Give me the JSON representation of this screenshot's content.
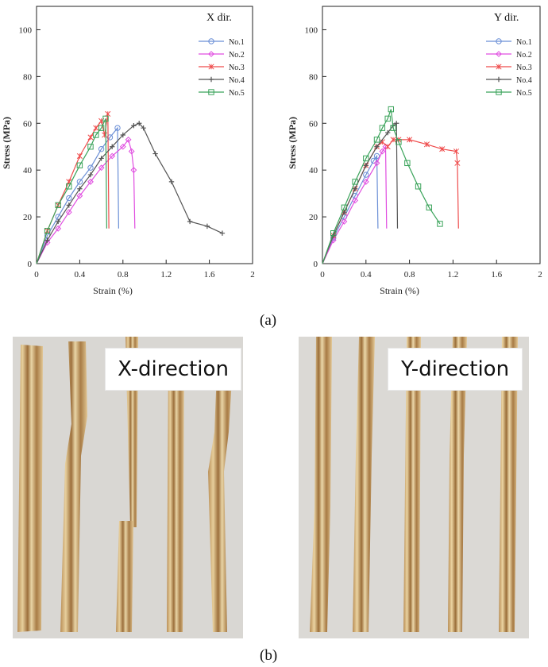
{
  "figure": {
    "caption_a": "(a)",
    "caption_b": "(b)"
  },
  "photos": {
    "x_label": "X-direction",
    "y_label": "Y-direction"
  },
  "series_colors": {
    "No.1": "#6b8fd6",
    "No.2": "#e04de0",
    "No.3": "#ef4c4c",
    "No.4": "#555555",
    "No.5": "#3aa35a"
  },
  "chart_data": [
    {
      "type": "line",
      "legend_title": "X dir.",
      "xlabel": "Strain (%)",
      "ylabel": "Stress (MPa)",
      "xlim": [
        0,
        2
      ],
      "ylim": [
        0,
        110
      ],
      "xticks": [
        "0",
        "0.4",
        "0.8",
        "1.2",
        "1.6",
        "2"
      ],
      "yticks": [
        "0",
        "20",
        "40",
        "60",
        "80",
        "100"
      ],
      "legend_position": "top-right",
      "series": [
        {
          "name": "No.1",
          "points": [
            [
              0,
              0
            ],
            [
              0.1,
              12
            ],
            [
              0.2,
              20
            ],
            [
              0.3,
              28
            ],
            [
              0.4,
              35
            ],
            [
              0.5,
              41
            ],
            [
              0.6,
              49
            ],
            [
              0.68,
              54
            ],
            [
              0.75,
              58
            ],
            [
              0.76,
              15
            ]
          ]
        },
        {
          "name": "No.2",
          "points": [
            [
              0,
              0
            ],
            [
              0.1,
              9
            ],
            [
              0.2,
              15
            ],
            [
              0.3,
              22
            ],
            [
              0.4,
              29
            ],
            [
              0.5,
              35
            ],
            [
              0.6,
              41
            ],
            [
              0.7,
              46
            ],
            [
              0.8,
              50
            ],
            [
              0.85,
              53
            ],
            [
              0.88,
              48
            ],
            [
              0.9,
              40
            ],
            [
              0.91,
              15
            ]
          ]
        },
        {
          "name": "No.3",
          "points": [
            [
              0,
              0
            ],
            [
              0.1,
              14
            ],
            [
              0.2,
              25
            ],
            [
              0.3,
              35
            ],
            [
              0.4,
              46
            ],
            [
              0.5,
              54
            ],
            [
              0.55,
              58
            ],
            [
              0.6,
              61
            ],
            [
              0.63,
              55
            ],
            [
              0.66,
              64
            ],
            [
              0.67,
              15
            ]
          ]
        },
        {
          "name": "No.4",
          "points": [
            [
              0,
              0
            ],
            [
              0.1,
              10
            ],
            [
              0.2,
              18
            ],
            [
              0.3,
              25
            ],
            [
              0.4,
              32
            ],
            [
              0.5,
              38
            ],
            [
              0.6,
              45
            ],
            [
              0.7,
              50
            ],
            [
              0.8,
              55
            ],
            [
              0.9,
              59
            ],
            [
              0.95,
              60
            ],
            [
              0.99,
              58
            ],
            [
              1.1,
              47
            ],
            [
              1.25,
              35
            ],
            [
              1.42,
              18
            ],
            [
              1.58,
              16
            ],
            [
              1.72,
              13
            ]
          ]
        },
        {
          "name": "No.5",
          "points": [
            [
              0,
              0
            ],
            [
              0.1,
              14
            ],
            [
              0.2,
              25
            ],
            [
              0.3,
              33
            ],
            [
              0.4,
              42
            ],
            [
              0.5,
              50
            ],
            [
              0.55,
              55
            ],
            [
              0.6,
              58
            ],
            [
              0.64,
              62
            ],
            [
              0.65,
              15
            ]
          ]
        }
      ]
    },
    {
      "type": "line",
      "legend_title": "Y dir.",
      "xlabel": "Strain (%)",
      "ylabel": "Stress (MPa)",
      "xlim": [
        0,
        2
      ],
      "ylim": [
        0,
        110
      ],
      "xticks": [
        "0",
        "0.4",
        "0.8",
        "1.2",
        "1.6",
        "2"
      ],
      "yticks": [
        "0",
        "20",
        "40",
        "60",
        "80",
        "100"
      ],
      "legend_position": "top-right",
      "series": [
        {
          "name": "No.1",
          "points": [
            [
              0,
              0
            ],
            [
              0.1,
              11
            ],
            [
              0.2,
              20
            ],
            [
              0.3,
              29
            ],
            [
              0.4,
              38
            ],
            [
              0.47,
              44
            ],
            [
              0.5,
              46
            ],
            [
              0.51,
              15
            ]
          ]
        },
        {
          "name": "No.2",
          "points": [
            [
              0,
              0
            ],
            [
              0.1,
              10
            ],
            [
              0.2,
              18
            ],
            [
              0.3,
              27
            ],
            [
              0.4,
              35
            ],
            [
              0.5,
              43
            ],
            [
              0.55,
              48
            ],
            [
              0.58,
              50
            ],
            [
              0.59,
              15
            ]
          ]
        },
        {
          "name": "No.3",
          "points": [
            [
              0,
              0
            ],
            [
              0.1,
              12
            ],
            [
              0.2,
              22
            ],
            [
              0.3,
              32
            ],
            [
              0.4,
              42
            ],
            [
              0.5,
              50
            ],
            [
              0.55,
              52
            ],
            [
              0.6,
              50
            ],
            [
              0.65,
              53
            ],
            [
              0.7,
              53
            ],
            [
              0.8,
              53
            ],
            [
              0.96,
              51
            ],
            [
              1.1,
              49
            ],
            [
              1.23,
              48
            ],
            [
              1.24,
              43
            ],
            [
              1.25,
              15
            ]
          ]
        },
        {
          "name": "No.4",
          "points": [
            [
              0,
              0
            ],
            [
              0.1,
              12
            ],
            [
              0.2,
              22
            ],
            [
              0.3,
              32
            ],
            [
              0.4,
              42
            ],
            [
              0.5,
              50
            ],
            [
              0.6,
              56
            ],
            [
              0.65,
              59
            ],
            [
              0.68,
              60
            ],
            [
              0.69,
              15
            ]
          ]
        },
        {
          "name": "No.5",
          "points": [
            [
              0,
              0
            ],
            [
              0.1,
              13
            ],
            [
              0.2,
              24
            ],
            [
              0.3,
              35
            ],
            [
              0.4,
              45
            ],
            [
              0.5,
              53
            ],
            [
              0.55,
              58
            ],
            [
              0.6,
              62
            ],
            [
              0.63,
              66
            ],
            [
              0.65,
              58
            ],
            [
              0.7,
              52
            ],
            [
              0.78,
              43
            ],
            [
              0.88,
              33
            ],
            [
              0.98,
              24
            ],
            [
              1.08,
              17
            ]
          ]
        }
      ]
    }
  ]
}
